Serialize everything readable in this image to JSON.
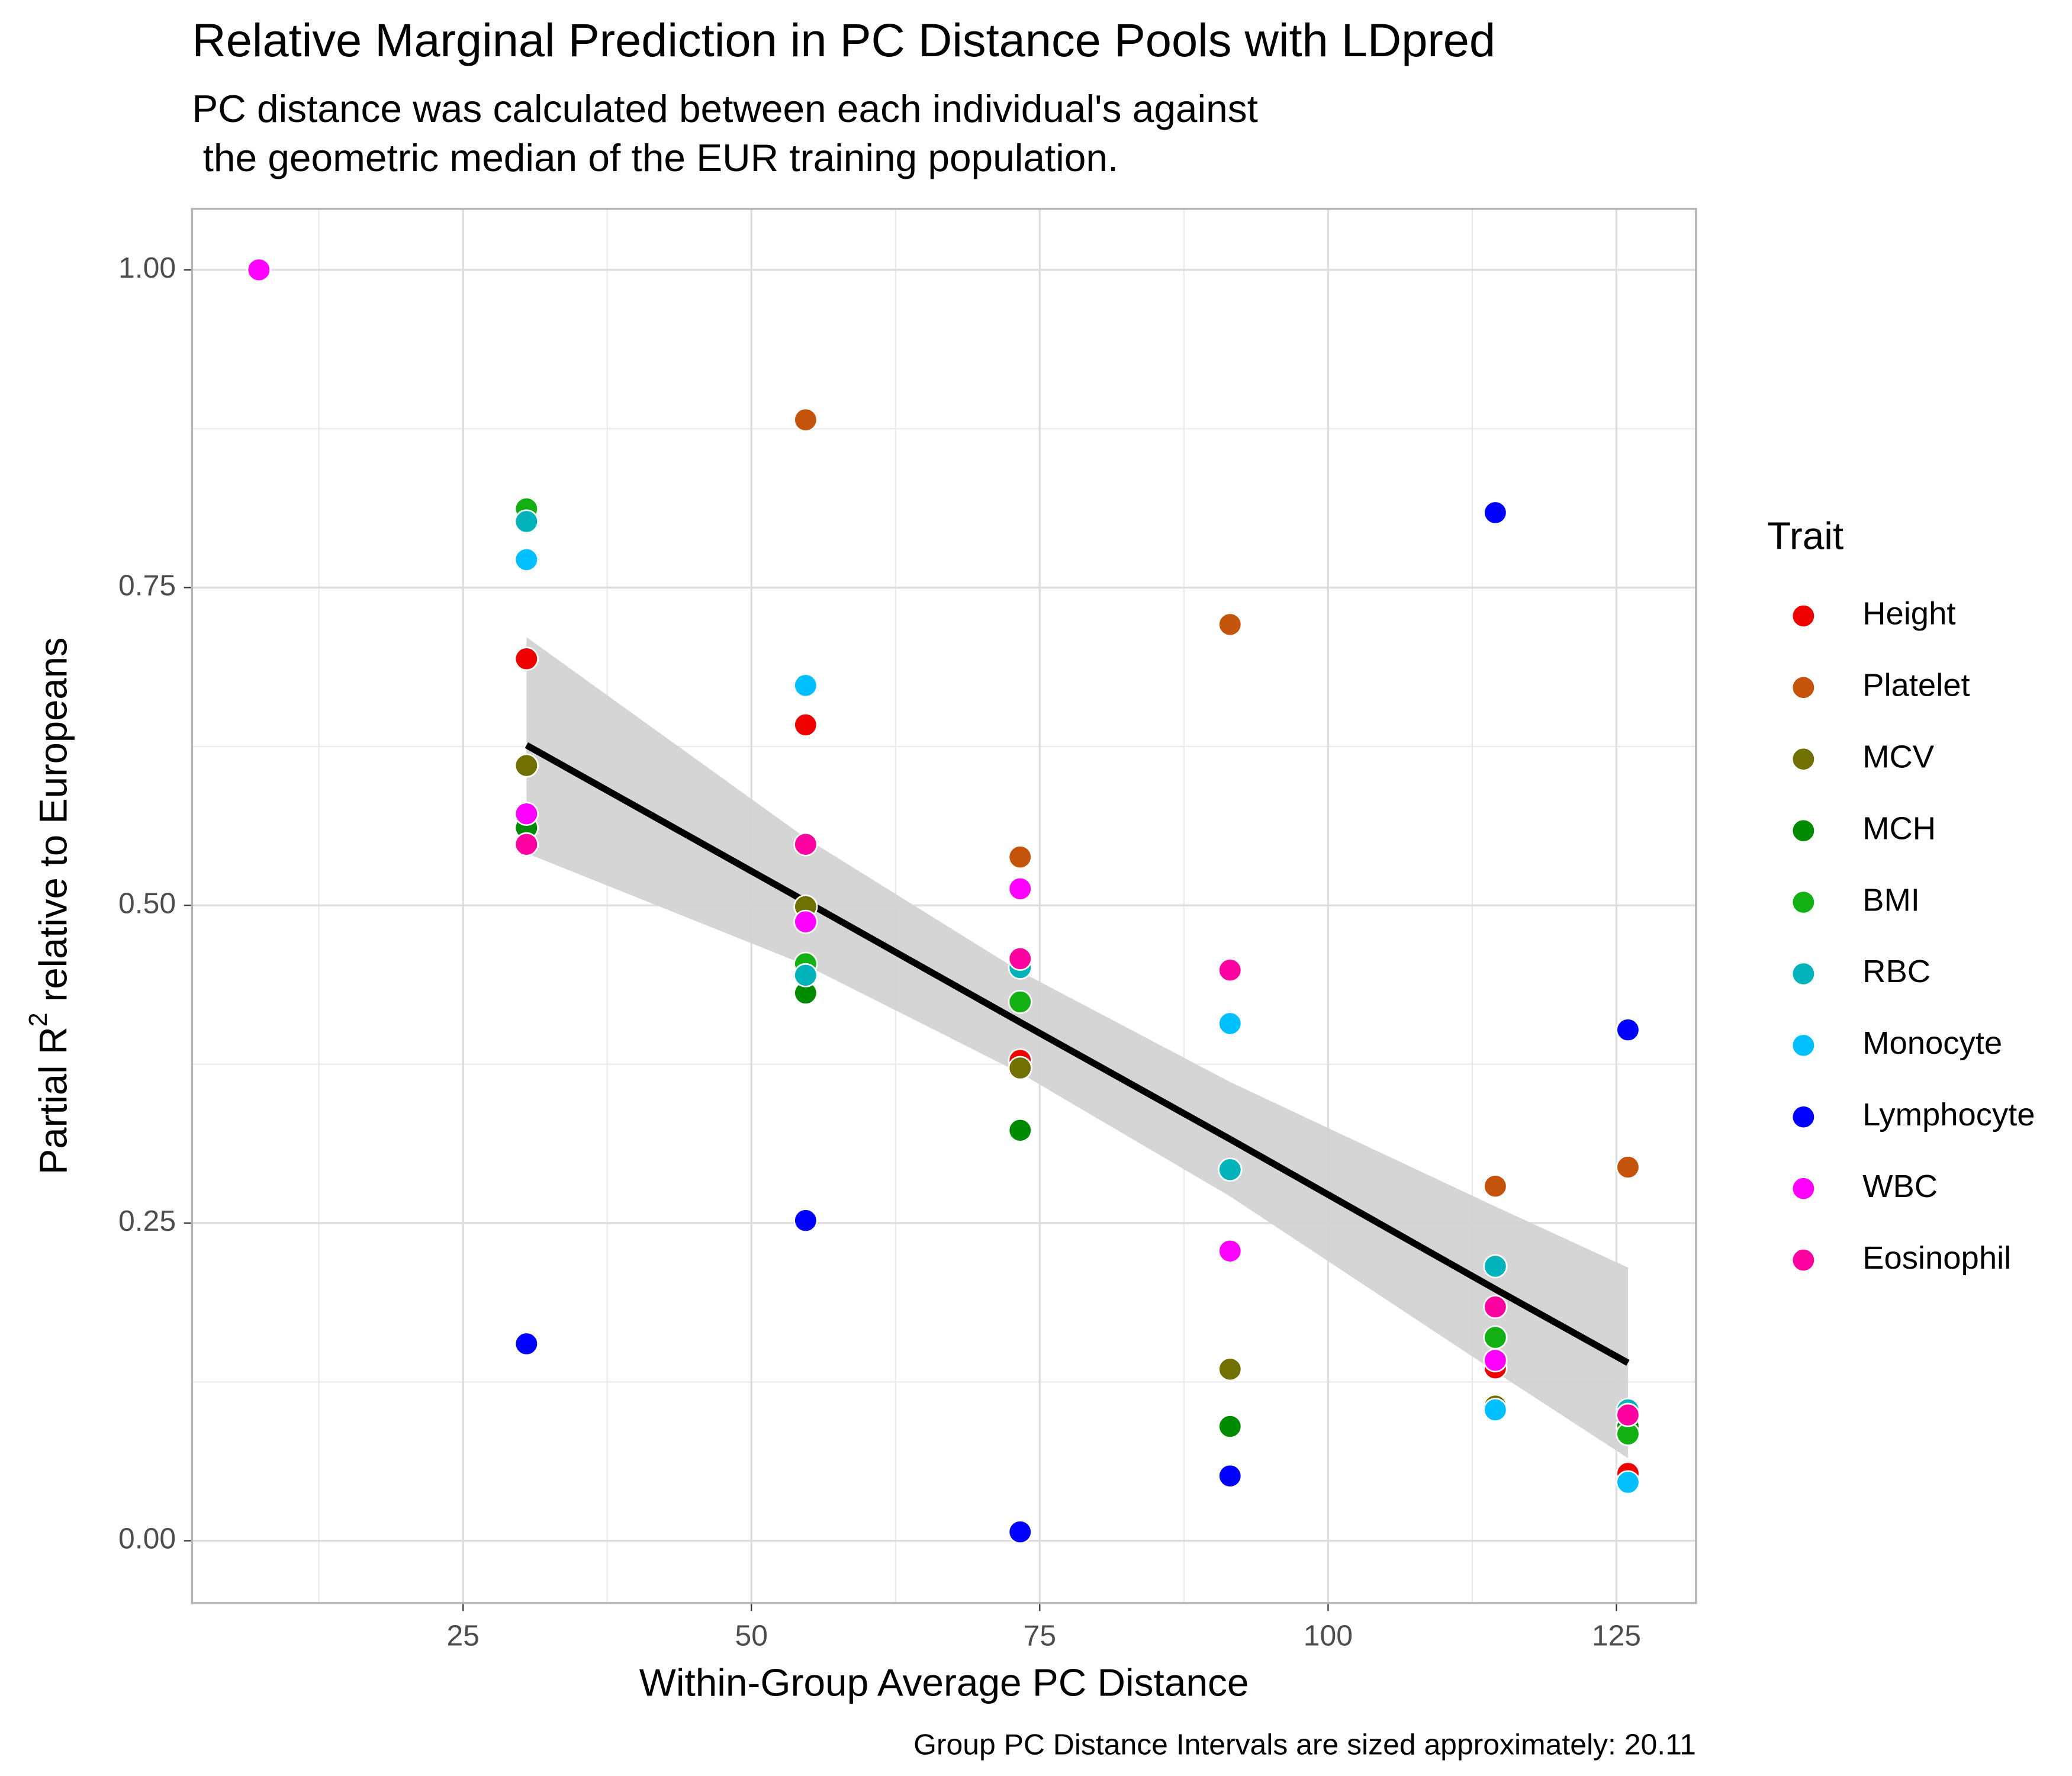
{
  "chart_data": {
    "type": "scatter",
    "title": "Relative Marginal Prediction in PC Distance Pools with LDpred",
    "subtitle": [
      "PC distance was calculated between each individual's against",
      " the geometric median of the EUR training population."
    ],
    "x_label": "Within-Group Average PC Distance",
    "y_label": {
      "text": "Partial R",
      "sup": "2",
      "rest": " relative to Europeans"
    },
    "caption": "Group PC Distance Intervals are sized approximately: 20.11",
    "legend_title": "Trait",
    "legend_position": "right",
    "grid": true,
    "xlim": [
      1.5,
      131.9
    ],
    "ylim": [
      -0.049,
      1.048
    ],
    "xticks": [
      25,
      50,
      75,
      100,
      125
    ],
    "yticks": [
      {
        "value": 0,
        "label": "0.00"
      },
      {
        "value": 0.25,
        "label": "0.25"
      },
      {
        "value": 0.5,
        "label": "0.50"
      },
      {
        "value": 0.75,
        "label": "0.75"
      },
      {
        "value": 1,
        "label": "1.00"
      }
    ],
    "xminor": [
      12.5,
      37.5,
      62.5,
      87.5,
      112.5
    ],
    "yminor": [
      0.125,
      0.375,
      0.625,
      0.875
    ],
    "x": [
      7.3,
      30.5,
      54.7,
      73.3,
      91.5,
      114.5,
      126.0
    ],
    "series": [
      {
        "name": "Height",
        "color": "#ee0000",
        "values": [
          1.0,
          0.694,
          0.642,
          0.378,
          null,
          0.136,
          0.053
        ]
      },
      {
        "name": "Platelet",
        "color": "#c4540c",
        "values": [
          1.0,
          null,
          0.882,
          0.538,
          0.721,
          0.279,
          0.294
        ]
      },
      {
        "name": "MCV",
        "color": "#707000",
        "values": [
          1.0,
          0.61,
          0.499,
          0.372,
          0.135,
          0.106,
          0.089
        ]
      },
      {
        "name": "MCH",
        "color": "#008a00",
        "values": [
          1.0,
          0.561,
          0.431,
          0.323,
          0.09,
          null,
          0.09
        ]
      },
      {
        "name": "BMI",
        "color": "#12b012",
        "values": [
          1.0,
          0.812,
          0.454,
          0.424,
          null,
          0.16,
          0.084
        ]
      },
      {
        "name": "RBC",
        "color": "#00b2ba",
        "values": [
          1.0,
          0.802,
          0.445,
          0.451,
          0.292,
          0.216,
          0.103
        ]
      },
      {
        "name": "Monocyte",
        "color": "#00bfff",
        "values": [
          1.0,
          0.772,
          0.673,
          null,
          0.407,
          0.103,
          0.046
        ]
      },
      {
        "name": "Lymphocyte",
        "color": "#0000ff",
        "values": [
          1.0,
          0.155,
          0.252,
          0.007,
          0.051,
          0.809,
          0.402
        ]
      },
      {
        "name": "WBC",
        "color": "#ff00ff",
        "values": [
          1.0,
          0.572,
          0.487,
          0.513,
          0.228,
          0.142,
          0.099
        ]
      },
      {
        "name": "Eosinophil",
        "color": "#ff00a0",
        "values": [
          null,
          0.548,
          0.548,
          0.458,
          0.449,
          0.184,
          0.099
        ]
      }
    ],
    "fit": {
      "color": "#000000",
      "band_color": "#d3d3d3",
      "x": [
        30.5,
        54.7,
        73.3,
        91.5,
        114.5,
        126.0
      ],
      "y": [
        0.626,
        0.503,
        0.408,
        0.316,
        0.198,
        0.14
      ],
      "lower": [
        0.541,
        0.453,
        0.368,
        0.271,
        0.133,
        0.065
      ],
      "upper": [
        0.711,
        0.553,
        0.448,
        0.361,
        0.263,
        0.215
      ]
    }
  }
}
